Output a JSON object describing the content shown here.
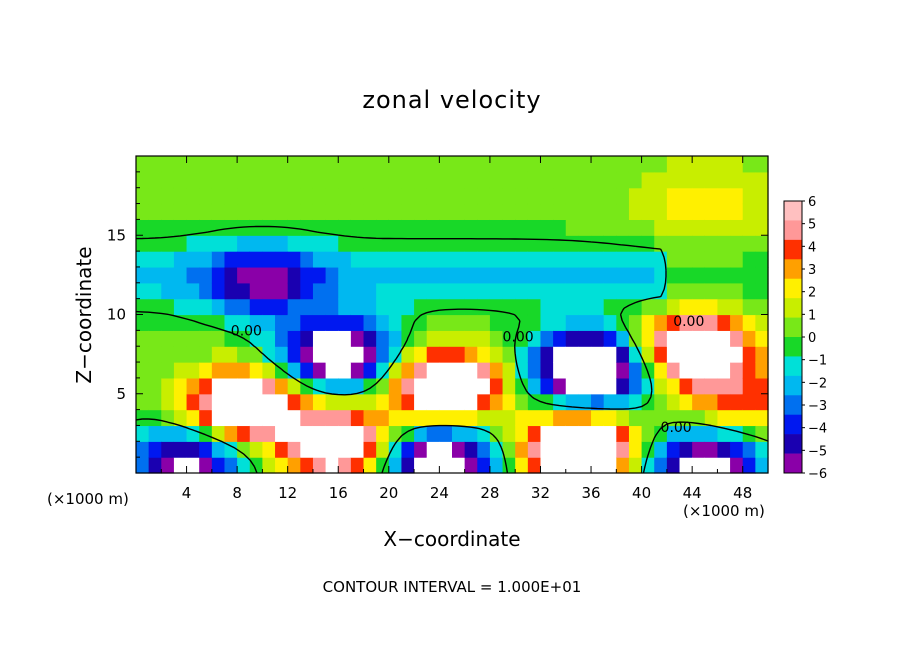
{
  "chart_data": {
    "type": "heatmap",
    "title": "zonal velocity",
    "xlabel": "X−coordinate",
    "ylabel": "Z−coordinate",
    "x_unit_left": "(×1000 m)",
    "x_unit_right": "(×1000 m)",
    "footnote": "CONTOUR INTERVAL = 1.000E+01",
    "xlim": [
      0,
      50
    ],
    "ylim": [
      0,
      20
    ],
    "x_ticks": [
      4,
      8,
      12,
      16,
      20,
      24,
      28,
      32,
      36,
      40,
      44,
      48
    ],
    "y_ticks": [
      5,
      10,
      15
    ],
    "colorbar": {
      "min": -6,
      "max": 6,
      "tick_labels": [
        "6",
        "5",
        "4",
        "3",
        "2",
        "1",
        "0",
        "−1",
        "−2",
        "−3",
        "−4",
        "−5",
        "−6"
      ],
      "colors": [
        "#8a00a8",
        "#1a00b0",
        "#0018f0",
        "#0070f0",
        "#00b8f0",
        "#00e0d8",
        "#18d828",
        "#78e818",
        "#c8ee00",
        "#fff000",
        "#ffa000",
        "#ff3000",
        "#ff9898",
        "#ffc0c0"
      ]
    },
    "contour_labels": [
      "0.00",
      "0.00",
      "0.00",
      "0.00"
    ],
    "features": [
      {
        "x": 8.5,
        "z": 4.3,
        "value": 9
      },
      {
        "x": 16,
        "z": 7.5,
        "value": -9
      },
      {
        "x": 24.5,
        "z": 5.6,
        "value": 9
      },
      {
        "x": 36,
        "z": 6.6,
        "value": -11
      },
      {
        "x": 44,
        "z": 7.8,
        "value": 9
      },
      {
        "x": 10,
        "z": 12,
        "value": -4.5
      },
      {
        "x": 45,
        "z": 17,
        "value": 1.5
      },
      {
        "x": 4,
        "z": 0.7,
        "value": -7
      },
      {
        "x": 16,
        "z": 1.8,
        "value": 8
      },
      {
        "x": 24,
        "z": 0.7,
        "value": -9
      },
      {
        "x": 35,
        "z": 1.5,
        "value": 10
      },
      {
        "x": 45,
        "z": 0.6,
        "value": -8
      },
      {
        "x": 48,
        "z": 4.5,
        "value": 4
      }
    ]
  }
}
